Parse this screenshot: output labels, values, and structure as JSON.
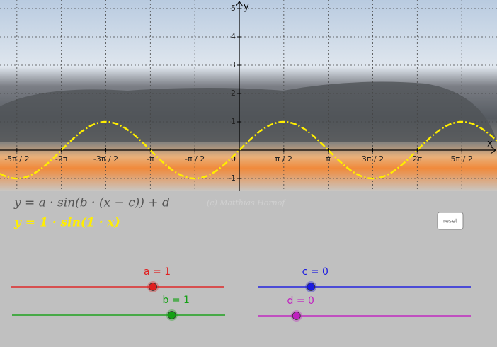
{
  "graph": {
    "x_axis_label": "x",
    "y_axis_label": "y",
    "origin_label": "0",
    "xlim": [
      -8.45,
      9.1
    ],
    "ylim": [
      -1.45,
      5.3
    ],
    "xticks": [
      {
        "value": -7.854,
        "label": "-5π / 2"
      },
      {
        "value": -6.283,
        "label": "-2π"
      },
      {
        "value": -4.712,
        "label": "-3π / 2"
      },
      {
        "value": -3.142,
        "label": "-π"
      },
      {
        "value": -1.571,
        "label": "-π / 2"
      },
      {
        "value": 1.571,
        "label": "π / 2"
      },
      {
        "value": 3.142,
        "label": "π"
      },
      {
        "value": 4.712,
        "label": "3π / 2"
      },
      {
        "value": 6.283,
        "label": "2π"
      },
      {
        "value": 7.854,
        "label": "5π / 2"
      }
    ],
    "yticks": [
      -1,
      1,
      2,
      3,
      4,
      5
    ],
    "curve_color": "#ffee00"
  },
  "formula_general": "y = a · sin(b · (x − c)) + d",
  "formula_current": "y = 1 · sin(1 · x)",
  "watermark": "(c) Matthias Hornof",
  "reset_button": "reset",
  "sliders": [
    {
      "name": "a",
      "label": "a = 1",
      "value": 1,
      "min": -3,
      "max": 3,
      "color": "#e02020"
    },
    {
      "name": "b",
      "label": "b = 1",
      "value": 1,
      "min": -2,
      "max": 2,
      "color": "#14a014"
    },
    {
      "name": "c",
      "label": "c = 0",
      "value": 0,
      "min": -3,
      "max": 9,
      "color": "#1a1ae0"
    },
    {
      "name": "d",
      "label": "d = 0",
      "value": 0,
      "min": -2,
      "max": 9,
      "color": "#c020c0"
    }
  ]
}
